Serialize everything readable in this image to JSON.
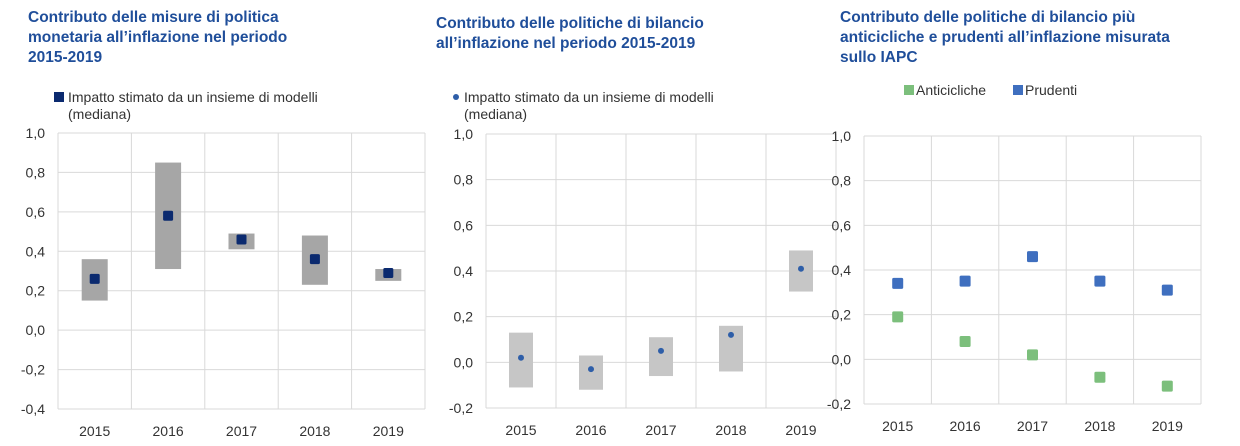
{
  "chart_data": [
    {
      "type": "scatter",
      "title_lines": [
        "Contributo delle misure di politica",
        "monetaria all’inflazione nel periodo",
        "2015-2019"
      ],
      "legend": {
        "marker": "square",
        "color": "#0b2a6f",
        "lines": [
          "Impatto stimato da un insieme di modelli",
          "(mediana)"
        ]
      },
      "categories": [
        "2015",
        "2016",
        "2017",
        "2018",
        "2019"
      ],
      "ylim": [
        -0.4,
        1.0
      ],
      "yticks": [
        "1,0",
        "0,8",
        "0,6",
        "0,4",
        "0,2",
        "0,0",
        "-0,2",
        "-0,4"
      ],
      "ranges": [
        [
          0.15,
          0.36
        ],
        [
          0.31,
          0.85
        ],
        [
          0.41,
          0.49
        ],
        [
          0.23,
          0.48
        ],
        [
          0.25,
          0.31
        ]
      ],
      "median": [
        0.26,
        0.58,
        0.46,
        0.36,
        0.29
      ],
      "range_color": "#a6a6a6",
      "grid": true
    },
    {
      "type": "scatter",
      "title_lines": [
        "Contributo delle politiche di bilancio",
        "all’inflazione nel periodo 2015-2019"
      ],
      "legend": {
        "marker": "dot",
        "color": "#2e5ea8",
        "lines": [
          "Impatto stimato da un insieme di modelli",
          "(mediana)"
        ]
      },
      "categories": [
        "2015",
        "2016",
        "2017",
        "2018",
        "2019"
      ],
      "ylim": [
        -0.2,
        1.0
      ],
      "yticks": [
        "1,0",
        "0,8",
        "0,6",
        "0,4",
        "0,2",
        "0,0",
        "-0,2"
      ],
      "ranges": [
        [
          -0.11,
          0.13
        ],
        [
          -0.12,
          0.03
        ],
        [
          -0.06,
          0.11
        ],
        [
          -0.04,
          0.16
        ],
        [
          0.31,
          0.49
        ]
      ],
      "median": [
        0.02,
        -0.03,
        0.05,
        0.12,
        0.41
      ],
      "range_color": "#c6c6c6",
      "grid": true
    },
    {
      "type": "scatter",
      "title_lines": [
        "Contributo delle politiche di bilancio più",
        "anticicliche e prudenti all’inflazione misurata",
        "sullo IAPC"
      ],
      "categories": [
        "2015",
        "2016",
        "2017",
        "2018",
        "2019"
      ],
      "ylim": [
        -0.2,
        1.0
      ],
      "yticks": [
        "1,0",
        "0,8",
        "0,6",
        "0,4",
        "0,2",
        "0,0",
        "-0,2"
      ],
      "series": [
        {
          "name": "Anticicliche",
          "color": "#7cbf7c",
          "values": [
            0.19,
            0.08,
            0.02,
            -0.08,
            -0.12
          ]
        },
        {
          "name": "Prudenti",
          "color": "#3f6fbf",
          "values": [
            0.34,
            0.35,
            0.46,
            0.35,
            0.31
          ]
        }
      ],
      "grid": true
    }
  ]
}
